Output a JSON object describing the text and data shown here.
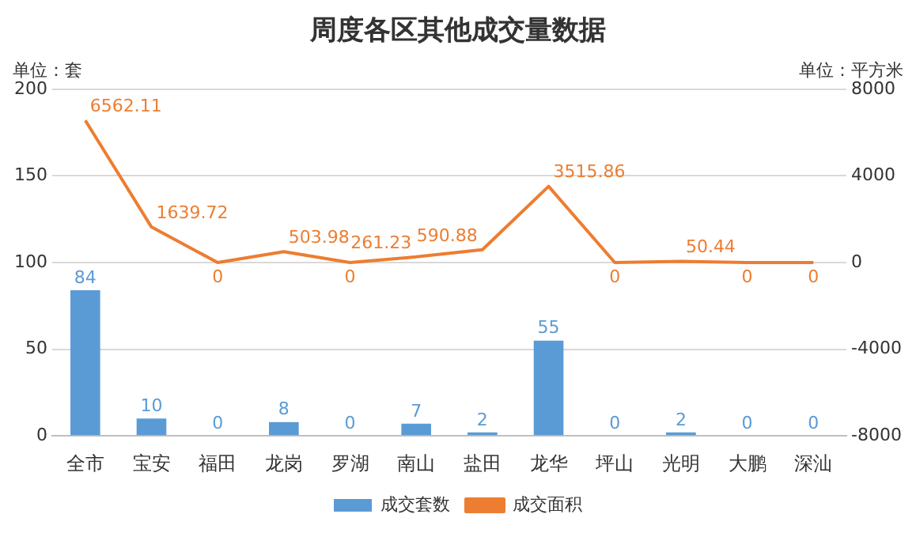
{
  "chart_data": {
    "type": "bar",
    "title": "周度各区其他成交量数据",
    "ylabel": "单位：套",
    "y2label": "单位：平方米",
    "categories": [
      "全市",
      "宝安",
      "福田",
      "龙岗",
      "罗湖",
      "南山",
      "盐田",
      "龙华",
      "坪山",
      "光明",
      "大鹏",
      "深汕"
    ],
    "series": [
      {
        "name": "成交套数",
        "color": "#5b9bd5",
        "values": [
          84,
          10,
          0,
          8,
          0,
          7,
          2,
          55,
          0,
          2,
          0,
          0
        ]
      },
      {
        "name": "成交面积",
        "type": "line",
        "axis": "y2",
        "color": "#ed7d31",
        "values": [
          6562.11,
          1639.72,
          0,
          503.98,
          0,
          261.23,
          590.88,
          3515.86,
          0,
          50.44,
          0,
          0
        ]
      }
    ],
    "ylim": [
      0,
      200
    ],
    "yticks": [
      0,
      50,
      100,
      150,
      200
    ],
    "y2lim": [
      -8000,
      8000
    ],
    "y2ticks": [
      -8000,
      -4000,
      0,
      4000,
      8000
    ],
    "grid": "y",
    "legend": "bottom",
    "data_labels": true,
    "marker": "none"
  }
}
